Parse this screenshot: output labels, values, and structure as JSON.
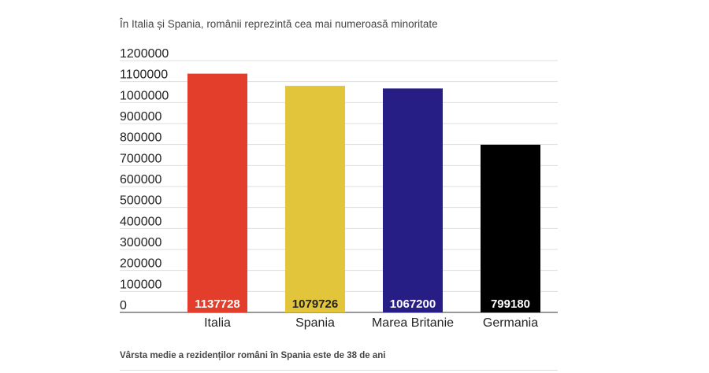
{
  "chart_data": {
    "type": "bar",
    "title": "În Italia și Spania, românii reprezintă cea mai numeroasă minoritate",
    "note": "Vârsta medie a rezidenților români în Spania este de 38 de ani",
    "categories": [
      "Italia",
      "Spania",
      "Marea Britanie",
      "Germania"
    ],
    "values": [
      1137728,
      1079726,
      1067200,
      799180
    ],
    "value_labels": [
      "1137728",
      "1079726",
      "1067200",
      "799180"
    ],
    "colors": [
      "#e23e2b",
      "#e2c53b",
      "#271e85",
      "#000000"
    ],
    "value_label_colors": [
      "#ffffff",
      "#222222",
      "#ffffff",
      "#ffffff"
    ],
    "ylim": [
      0,
      1200000
    ],
    "yticks": [
      0,
      100000,
      200000,
      300000,
      400000,
      500000,
      600000,
      700000,
      800000,
      900000,
      1000000,
      1100000,
      1200000
    ],
    "ytick_labels": [
      "0",
      "100000",
      "200000",
      "300000",
      "400000",
      "500000",
      "600000",
      "700000",
      "800000",
      "900000",
      "1000000",
      "1100000",
      "1200000"
    ],
    "grid": true,
    "xlabel": "",
    "ylabel": ""
  }
}
